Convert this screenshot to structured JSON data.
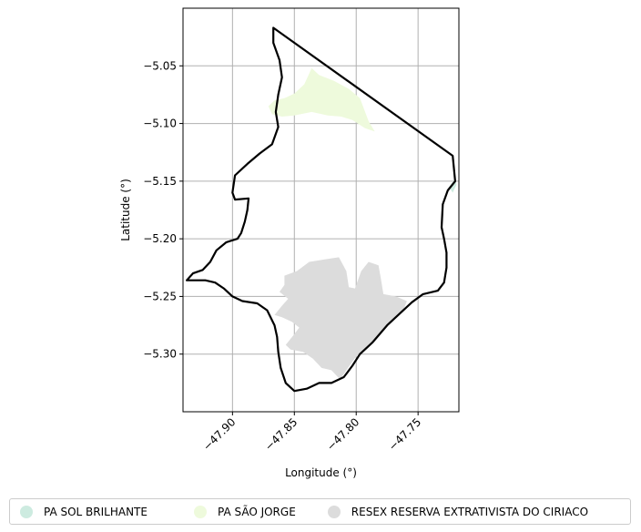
{
  "chart_data": {
    "type": "map",
    "title": "",
    "xlabel": "Longitude (°)",
    "ylabel": "Latitude (°)",
    "xlim": [
      -47.94,
      -47.717
    ],
    "ylim": [
      -5.35,
      -5.0
    ],
    "grid": true,
    "xticks": [
      {
        "value": -47.9,
        "label": "−47.90"
      },
      {
        "value": -47.85,
        "label": "−47.85"
      },
      {
        "value": -47.8,
        "label": "−47.80"
      },
      {
        "value": -47.75,
        "label": "−47.75"
      }
    ],
    "yticks": [
      {
        "value": -5.05,
        "label": "−5.05"
      },
      {
        "value": -5.1,
        "label": "−5.10"
      },
      {
        "value": -5.15,
        "label": "−5.15"
      },
      {
        "value": -5.2,
        "label": "−5.20"
      },
      {
        "value": -5.25,
        "label": "−5.25"
      },
      {
        "value": -5.3,
        "label": "−5.30"
      }
    ],
    "xtick_rotation": 45,
    "legend_placement": "bottom",
    "boundary": {
      "color": "#000000",
      "coords": [
        [
          -47.867,
          -5.017
        ],
        [
          -47.722,
          -5.128
        ],
        [
          -47.72,
          -5.15
        ],
        [
          -47.726,
          -5.158
        ],
        [
          -47.73,
          -5.17
        ],
        [
          -47.731,
          -5.19
        ],
        [
          -47.729,
          -5.2
        ],
        [
          -47.727,
          -5.212
        ],
        [
          -47.727,
          -5.225
        ],
        [
          -47.729,
          -5.238
        ],
        [
          -47.734,
          -5.245
        ],
        [
          -47.746,
          -5.248
        ],
        [
          -47.755,
          -5.255
        ],
        [
          -47.765,
          -5.265
        ],
        [
          -47.775,
          -5.275
        ],
        [
          -47.787,
          -5.29
        ],
        [
          -47.797,
          -5.3
        ],
        [
          -47.803,
          -5.31
        ],
        [
          -47.81,
          -5.32
        ],
        [
          -47.82,
          -5.325
        ],
        [
          -47.83,
          -5.325
        ],
        [
          -47.84,
          -5.33
        ],
        [
          -47.85,
          -5.332
        ],
        [
          -47.857,
          -5.325
        ],
        [
          -47.861,
          -5.312
        ],
        [
          -47.863,
          -5.298
        ],
        [
          -47.864,
          -5.285
        ],
        [
          -47.866,
          -5.275
        ],
        [
          -47.872,
          -5.262
        ],
        [
          -47.88,
          -5.256
        ],
        [
          -47.892,
          -5.254
        ],
        [
          -47.9,
          -5.25
        ],
        [
          -47.907,
          -5.243
        ],
        [
          -47.914,
          -5.238
        ],
        [
          -47.922,
          -5.236
        ],
        [
          -47.937,
          -5.236
        ],
        [
          -47.932,
          -5.23
        ],
        [
          -47.924,
          -5.227
        ],
        [
          -47.918,
          -5.22
        ],
        [
          -47.913,
          -5.21
        ],
        [
          -47.905,
          -5.203
        ],
        [
          -47.896,
          -5.2
        ],
        [
          -47.893,
          -5.195
        ],
        [
          -47.89,
          -5.185
        ],
        [
          -47.888,
          -5.175
        ],
        [
          -47.887,
          -5.165
        ],
        [
          -47.898,
          -5.166
        ],
        [
          -47.9,
          -5.16
        ],
        [
          -47.898,
          -5.145
        ],
        [
          -47.888,
          -5.135
        ],
        [
          -47.878,
          -5.126
        ],
        [
          -47.868,
          -5.118
        ],
        [
          -47.863,
          -5.103
        ],
        [
          -47.865,
          -5.09
        ],
        [
          -47.863,
          -5.075
        ],
        [
          -47.86,
          -5.06
        ],
        [
          -47.862,
          -5.045
        ],
        [
          -47.867,
          -5.03
        ],
        [
          -47.867,
          -5.017
        ]
      ]
    },
    "regions": [
      {
        "name": "PA SOL BRILHANTE",
        "color": "#cdebe0",
        "coords": [
          [
            -47.725,
            -5.155
          ],
          [
            -47.72,
            -5.148
          ],
          [
            -47.719,
            -5.153
          ],
          [
            -47.722,
            -5.16
          ]
        ]
      },
      {
        "name": "PA SÃO JORGE",
        "color": "#eefadc",
        "coords": [
          [
            -47.871,
            -5.085
          ],
          [
            -47.866,
            -5.08
          ],
          [
            -47.858,
            -5.078
          ],
          [
            -47.85,
            -5.074
          ],
          [
            -47.842,
            -5.066
          ],
          [
            -47.836,
            -5.052
          ],
          [
            -47.83,
            -5.058
          ],
          [
            -47.818,
            -5.063
          ],
          [
            -47.806,
            -5.07
          ],
          [
            -47.797,
            -5.078
          ],
          [
            -47.79,
            -5.098
          ],
          [
            -47.785,
            -5.107
          ],
          [
            -47.793,
            -5.104
          ],
          [
            -47.803,
            -5.097
          ],
          [
            -47.812,
            -5.094
          ],
          [
            -47.823,
            -5.093
          ],
          [
            -47.836,
            -5.09
          ],
          [
            -47.85,
            -5.093
          ],
          [
            -47.86,
            -5.094
          ],
          [
            -47.868,
            -5.092
          ]
        ]
      },
      {
        "name": "RESEX RESERVA EXTRATIVISTA DO CIRIACO",
        "color": "#dcdcdc",
        "coords": [
          [
            -47.858,
            -5.232
          ],
          [
            -47.848,
            -5.228
          ],
          [
            -47.838,
            -5.22
          ],
          [
            -47.826,
            -5.218
          ],
          [
            -47.814,
            -5.216
          ],
          [
            -47.808,
            -5.228
          ],
          [
            -47.806,
            -5.242
          ],
          [
            -47.801,
            -5.243
          ],
          [
            -47.796,
            -5.228
          ],
          [
            -47.79,
            -5.22
          ],
          [
            -47.782,
            -5.223
          ],
          [
            -47.78,
            -5.235
          ],
          [
            -47.778,
            -5.248
          ],
          [
            -47.768,
            -5.25
          ],
          [
            -47.759,
            -5.254
          ],
          [
            -47.762,
            -5.262
          ],
          [
            -47.771,
            -5.272
          ],
          [
            -47.78,
            -5.282
          ],
          [
            -47.79,
            -5.292
          ],
          [
            -47.8,
            -5.302
          ],
          [
            -47.808,
            -5.314
          ],
          [
            -47.813,
            -5.322
          ],
          [
            -47.82,
            -5.314
          ],
          [
            -47.828,
            -5.312
          ],
          [
            -47.835,
            -5.304
          ],
          [
            -47.843,
            -5.298
          ],
          [
            -47.853,
            -5.296
          ],
          [
            -47.857,
            -5.292
          ],
          [
            -47.851,
            -5.284
          ],
          [
            -47.846,
            -5.277
          ],
          [
            -47.852,
            -5.272
          ],
          [
            -47.86,
            -5.268
          ],
          [
            -47.866,
            -5.266
          ],
          [
            -47.86,
            -5.258
          ],
          [
            -47.855,
            -5.252
          ],
          [
            -47.862,
            -5.246
          ],
          [
            -47.858,
            -5.24
          ]
        ]
      }
    ]
  }
}
